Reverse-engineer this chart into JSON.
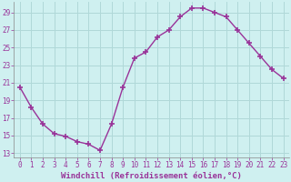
{
  "x": [
    0,
    1,
    2,
    3,
    4,
    5,
    6,
    7,
    8,
    9,
    10,
    11,
    12,
    13,
    14,
    15,
    16,
    17,
    18,
    19,
    20,
    21,
    22,
    23
  ],
  "y": [
    20.5,
    18.2,
    16.3,
    15.2,
    14.9,
    14.3,
    14.0,
    13.3,
    16.3,
    20.5,
    23.8,
    24.5,
    26.2,
    27.0,
    28.5,
    29.5,
    29.5,
    29.0,
    28.5,
    27.0,
    25.5,
    24.0,
    22.5,
    21.5
  ],
  "line_color": "#993399",
  "marker": "D",
  "marker_size": 2.5,
  "bg_color": "#cff0f0",
  "grid_color": "#b0d8d8",
  "tick_color": "#993399",
  "label_color": "#993399",
  "xlabel": "Windchill (Refroidissement éolien,°C)",
  "ylabel_ticks": [
    13,
    15,
    17,
    19,
    21,
    23,
    25,
    27,
    29
  ],
  "ylim": [
    12.5,
    30.2
  ],
  "xlim": [
    -0.5,
    23.5
  ],
  "axis_fontsize": 6.5,
  "tick_fontsize": 5.5
}
